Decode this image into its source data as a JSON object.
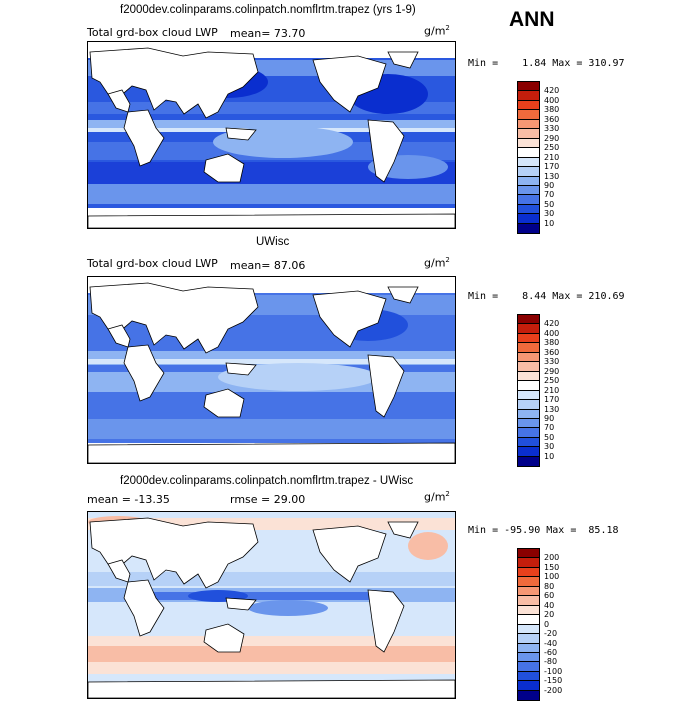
{
  "season": "ANN",
  "panels": [
    {
      "title": "f2000dev.colinparams.colinpatch.nomflrtm.trapez (yrs 1-9)",
      "field": "Total grd-box cloud LWP",
      "stat_text": "mean=  73.70",
      "units": "g/m",
      "units_exp": "2",
      "range_text": "Min =    1.84 Max = 310.97",
      "levels": [
        "420",
        "400",
        "380",
        "360",
        "330",
        "290",
        "250",
        "210",
        "170",
        "130",
        "90",
        "70",
        "50",
        "30",
        "10"
      ],
      "colors": [
        "#8a0000",
        "#c41e0c",
        "#e8401c",
        "#f06a3c",
        "#f69774",
        "#f8bda6",
        "#fbe2d6",
        "#ffffff",
        "#d6e7fb",
        "#b6d1f7",
        "#8eb4f2",
        "#6a95ec",
        "#4673e6",
        "#2150dc",
        "#0a2ecf",
        "#00008a"
      ]
    },
    {
      "title": "UWisc",
      "field": "Total grd-box cloud LWP",
      "stat_text": "mean=  87.06",
      "units": "g/m",
      "units_exp": "2",
      "range_text": "Min =    8.44 Max = 210.69",
      "levels": [
        "420",
        "400",
        "380",
        "360",
        "330",
        "290",
        "250",
        "210",
        "170",
        "130",
        "90",
        "70",
        "50",
        "30",
        "10"
      ],
      "colors": [
        "#8a0000",
        "#c41e0c",
        "#e8401c",
        "#f06a3c",
        "#f69774",
        "#f8bda6",
        "#fbe2d6",
        "#ffffff",
        "#d6e7fb",
        "#b6d1f7",
        "#8eb4f2",
        "#6a95ec",
        "#4673e6",
        "#2150dc",
        "#0a2ecf",
        "#00008a"
      ]
    },
    {
      "title": "f2000dev.colinparams.colinpatch.nomflrtm.trapez - UWisc",
      "field": "mean = -13.35",
      "stat_text": "rmse =  29.00",
      "units": "g/m",
      "units_exp": "2",
      "range_text": "Min = -95.90 Max =  85.18",
      "levels": [
        "200",
        "150",
        "100",
        "80",
        "60",
        "40",
        "20",
        "0",
        "-20",
        "-40",
        "-60",
        "-80",
        "-100",
        "-150",
        "-200"
      ],
      "colors": [
        "#8a0000",
        "#c41e0c",
        "#e8401c",
        "#f06a3c",
        "#f69774",
        "#f8bda6",
        "#fbe2d6",
        "#ffffff",
        "#d6e7fb",
        "#b6d1f7",
        "#8eb4f2",
        "#6a95ec",
        "#4673e6",
        "#2150dc",
        "#0a2ecf",
        "#00008a"
      ]
    }
  ]
}
